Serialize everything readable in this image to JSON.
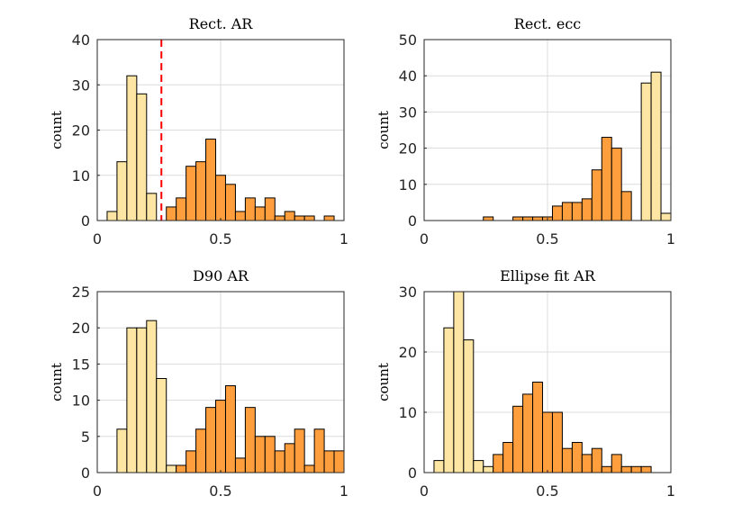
{
  "colors": {
    "light_bar": "#fde6a3",
    "dark_bar": "#ff9e3d",
    "threshold_line": "#ff0000"
  },
  "chart_data": [
    {
      "type": "bar",
      "title": "Rect. AR",
      "xlabel": "",
      "ylabel": "count",
      "xlim": [
        0,
        1
      ],
      "ylim": [
        0,
        40
      ],
      "xticks": [
        0,
        0.5,
        1
      ],
      "xtick_labels": [
        "0",
        "0.5",
        "1"
      ],
      "yticks": [
        0,
        10,
        20,
        30,
        40
      ],
      "ytick_labels": [
        "0",
        "10",
        "20",
        "30",
        "40"
      ],
      "grid": true,
      "bin_width": 0.04,
      "bins": [
        {
          "start": 0.04,
          "value": 2,
          "group": "light"
        },
        {
          "start": 0.08,
          "value": 13,
          "group": "light"
        },
        {
          "start": 0.12,
          "value": 32,
          "group": "light"
        },
        {
          "start": 0.16,
          "value": 28,
          "group": "light"
        },
        {
          "start": 0.2,
          "value": 6,
          "group": "light"
        },
        {
          "start": 0.28,
          "value": 3,
          "group": "dark"
        },
        {
          "start": 0.32,
          "value": 5,
          "group": "dark"
        },
        {
          "start": 0.36,
          "value": 12,
          "group": "dark"
        },
        {
          "start": 0.4,
          "value": 13,
          "group": "dark"
        },
        {
          "start": 0.44,
          "value": 18,
          "group": "dark"
        },
        {
          "start": 0.48,
          "value": 10,
          "group": "dark"
        },
        {
          "start": 0.52,
          "value": 8,
          "group": "dark"
        },
        {
          "start": 0.56,
          "value": 2,
          "group": "dark"
        },
        {
          "start": 0.6,
          "value": 5,
          "group": "dark"
        },
        {
          "start": 0.64,
          "value": 3,
          "group": "dark"
        },
        {
          "start": 0.68,
          "value": 5,
          "group": "dark"
        },
        {
          "start": 0.72,
          "value": 1,
          "group": "dark"
        },
        {
          "start": 0.76,
          "value": 2,
          "group": "dark"
        },
        {
          "start": 0.8,
          "value": 1,
          "group": "dark"
        },
        {
          "start": 0.84,
          "value": 1,
          "group": "dark"
        },
        {
          "start": 0.92,
          "value": 1,
          "group": "dark"
        }
      ],
      "threshold": 0.26
    },
    {
      "type": "bar",
      "title": "Rect. ecc",
      "xlabel": "",
      "ylabel": "count",
      "xlim": [
        0,
        1
      ],
      "ylim": [
        0,
        50
      ],
      "xticks": [
        0,
        0.5,
        1
      ],
      "xtick_labels": [
        "0",
        "0.5",
        "1"
      ],
      "yticks": [
        0,
        10,
        20,
        30,
        40,
        50
      ],
      "ytick_labels": [
        "0",
        "10",
        "20",
        "30",
        "40",
        "50"
      ],
      "grid": true,
      "bin_width": 0.04,
      "bins": [
        {
          "start": 0.24,
          "value": 1,
          "group": "dark"
        },
        {
          "start": 0.36,
          "value": 1,
          "group": "dark"
        },
        {
          "start": 0.4,
          "value": 1,
          "group": "dark"
        },
        {
          "start": 0.44,
          "value": 1,
          "group": "dark"
        },
        {
          "start": 0.48,
          "value": 1,
          "group": "dark"
        },
        {
          "start": 0.52,
          "value": 4,
          "group": "dark"
        },
        {
          "start": 0.56,
          "value": 5,
          "group": "dark"
        },
        {
          "start": 0.6,
          "value": 5,
          "group": "dark"
        },
        {
          "start": 0.64,
          "value": 6,
          "group": "dark"
        },
        {
          "start": 0.68,
          "value": 14,
          "group": "dark"
        },
        {
          "start": 0.72,
          "value": 23,
          "group": "dark"
        },
        {
          "start": 0.76,
          "value": 20,
          "group": "dark"
        },
        {
          "start": 0.8,
          "value": 8,
          "group": "dark"
        },
        {
          "start": 0.88,
          "value": 38,
          "group": "light"
        },
        {
          "start": 0.92,
          "value": 41,
          "group": "light"
        },
        {
          "start": 0.96,
          "value": 2,
          "group": "light"
        }
      ]
    },
    {
      "type": "bar",
      "title": "D90 AR",
      "xlabel": "",
      "ylabel": "count",
      "xlim": [
        0,
        1
      ],
      "ylim": [
        0,
        25
      ],
      "xticks": [
        0,
        0.5,
        1
      ],
      "xtick_labels": [
        "0",
        "0.5",
        "1"
      ],
      "yticks": [
        0,
        5,
        10,
        15,
        20,
        25
      ],
      "ytick_labels": [
        "0",
        "5",
        "10",
        "15",
        "20",
        "25"
      ],
      "grid": true,
      "bin_width": 0.04,
      "bins": [
        {
          "start": 0.08,
          "value": 6,
          "group": "light"
        },
        {
          "start": 0.12,
          "value": 20,
          "group": "light"
        },
        {
          "start": 0.16,
          "value": 20,
          "group": "light"
        },
        {
          "start": 0.2,
          "value": 21,
          "group": "light"
        },
        {
          "start": 0.24,
          "value": 13,
          "group": "light"
        },
        {
          "start": 0.28,
          "value": 1,
          "group": "light"
        },
        {
          "start": 0.32,
          "value": 1,
          "group": "dark"
        },
        {
          "start": 0.36,
          "value": 3,
          "group": "dark"
        },
        {
          "start": 0.4,
          "value": 6,
          "group": "dark"
        },
        {
          "start": 0.44,
          "value": 9,
          "group": "dark"
        },
        {
          "start": 0.48,
          "value": 10,
          "group": "dark"
        },
        {
          "start": 0.52,
          "value": 12,
          "group": "dark"
        },
        {
          "start": 0.56,
          "value": 2,
          "group": "dark"
        },
        {
          "start": 0.6,
          "value": 9,
          "group": "dark"
        },
        {
          "start": 0.64,
          "value": 5,
          "group": "dark"
        },
        {
          "start": 0.68,
          "value": 5,
          "group": "dark"
        },
        {
          "start": 0.72,
          "value": 3,
          "group": "dark"
        },
        {
          "start": 0.76,
          "value": 4,
          "group": "dark"
        },
        {
          "start": 0.8,
          "value": 6,
          "group": "dark"
        },
        {
          "start": 0.84,
          "value": 1,
          "group": "dark"
        },
        {
          "start": 0.88,
          "value": 6,
          "group": "dark"
        },
        {
          "start": 0.92,
          "value": 3,
          "group": "dark"
        },
        {
          "start": 0.96,
          "value": 3,
          "group": "dark"
        }
      ]
    },
    {
      "type": "bar",
      "title": "Ellipse fit AR",
      "xlabel": "",
      "ylabel": "count",
      "xlim": [
        0,
        1
      ],
      "ylim": [
        0,
        30
      ],
      "xticks": [
        0,
        0.5,
        1
      ],
      "xtick_labels": [
        "0",
        "0.5",
        "1"
      ],
      "yticks": [
        0,
        10,
        20,
        30
      ],
      "ytick_labels": [
        "0",
        "10",
        "20",
        "30"
      ],
      "grid": true,
      "bin_width": 0.04,
      "bins": [
        {
          "start": 0.04,
          "value": 2,
          "group": "light"
        },
        {
          "start": 0.08,
          "value": 24,
          "group": "light"
        },
        {
          "start": 0.12,
          "value": 30,
          "group": "light"
        },
        {
          "start": 0.16,
          "value": 22,
          "group": "light"
        },
        {
          "start": 0.2,
          "value": 2,
          "group": "light"
        },
        {
          "start": 0.24,
          "value": 1,
          "group": "light"
        },
        {
          "start": 0.28,
          "value": 3,
          "group": "dark"
        },
        {
          "start": 0.32,
          "value": 5,
          "group": "dark"
        },
        {
          "start": 0.36,
          "value": 11,
          "group": "dark"
        },
        {
          "start": 0.4,
          "value": 13,
          "group": "dark"
        },
        {
          "start": 0.44,
          "value": 15,
          "group": "dark"
        },
        {
          "start": 0.48,
          "value": 10,
          "group": "dark"
        },
        {
          "start": 0.52,
          "value": 10,
          "group": "dark"
        },
        {
          "start": 0.56,
          "value": 4,
          "group": "dark"
        },
        {
          "start": 0.6,
          "value": 5,
          "group": "dark"
        },
        {
          "start": 0.64,
          "value": 3,
          "group": "dark"
        },
        {
          "start": 0.68,
          "value": 4,
          "group": "dark"
        },
        {
          "start": 0.72,
          "value": 1,
          "group": "dark"
        },
        {
          "start": 0.76,
          "value": 3,
          "group": "dark"
        },
        {
          "start": 0.8,
          "value": 1,
          "group": "dark"
        },
        {
          "start": 0.84,
          "value": 1,
          "group": "dark"
        },
        {
          "start": 0.88,
          "value": 1,
          "group": "dark"
        }
      ]
    }
  ]
}
